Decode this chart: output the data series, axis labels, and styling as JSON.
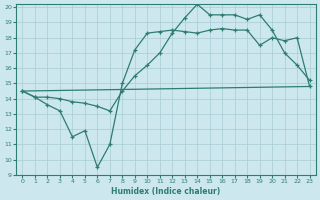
{
  "bg_color": "#cce8ee",
  "line_color": "#2e7d6e",
  "grid_color": "#aaccd4",
  "xlabel": "Humidex (Indice chaleur)",
  "xlim": [
    -0.5,
    23.5
  ],
  "ylim": [
    9,
    20.2
  ],
  "yticks": [
    9,
    10,
    11,
    12,
    13,
    14,
    15,
    16,
    17,
    18,
    19,
    20
  ],
  "xticks": [
    0,
    1,
    2,
    3,
    4,
    5,
    6,
    7,
    8,
    9,
    10,
    11,
    12,
    13,
    14,
    15,
    16,
    17,
    18,
    19,
    20,
    21,
    22,
    23
  ],
  "series1_x": [
    0,
    1,
    2,
    3,
    4,
    5,
    6,
    7,
    8,
    9,
    10,
    11,
    12,
    13,
    14,
    15,
    16,
    17,
    18,
    19,
    20,
    21,
    22,
    23
  ],
  "series1_y": [
    14.5,
    14.1,
    13.6,
    13.2,
    11.5,
    11.9,
    9.5,
    11.0,
    15.0,
    17.2,
    18.3,
    18.4,
    18.5,
    18.4,
    18.3,
    18.5,
    18.6,
    18.5,
    18.5,
    17.5,
    18.0,
    17.8,
    18.0,
    14.8
  ],
  "series2_x": [
    0,
    23
  ],
  "series2_y": [
    14.5,
    14.8
  ],
  "series3_x": [
    0,
    1,
    2,
    3,
    4,
    5,
    6,
    7,
    8,
    9,
    10,
    11,
    12,
    13,
    14,
    15,
    16,
    17,
    18,
    19,
    20,
    21,
    22,
    23
  ],
  "series3_y": [
    14.5,
    14.1,
    14.1,
    14.0,
    13.8,
    13.7,
    13.5,
    13.2,
    14.5,
    15.5,
    16.2,
    17.0,
    18.3,
    19.3,
    20.2,
    19.5,
    19.5,
    19.5,
    19.2,
    19.5,
    18.5,
    17.0,
    16.2,
    15.2
  ]
}
